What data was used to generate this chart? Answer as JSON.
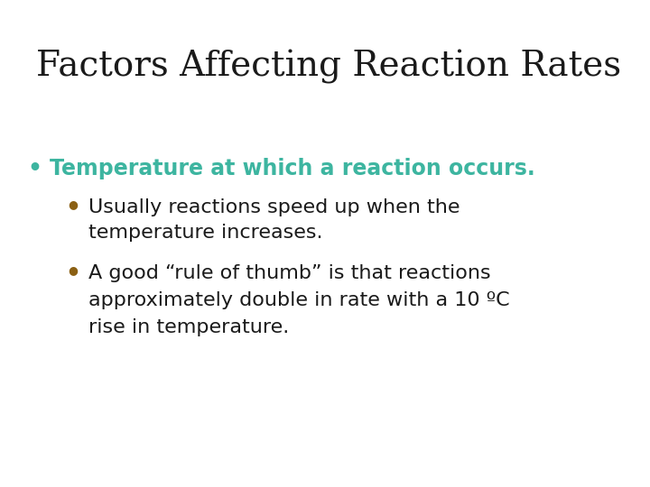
{
  "title": "Factors Affecting Reaction Rates",
  "title_color": "#1a1a1a",
  "title_fontsize": 28,
  "title_font": "serif",
  "background_color": "#ffffff",
  "bullet1_text": "Temperature at which a reaction occurs.",
  "bullet1_color": "#3db5a0",
  "bullet1_fontsize": 17,
  "bullet_dot_color": "#3db5a0",
  "sub_bullet_dot_color": "#8B6014",
  "sub_bullet1_line1": "Usually reactions speed up when the",
  "sub_bullet1_line2": "temperature increases.",
  "sub_bullet2_line1": "A good “rule of thumb” is that reactions",
  "sub_bullet2_line2": "approximately double in rate with a 10 ºC",
  "sub_bullet2_line3": "rise in temperature.",
  "sub_fontsize": 16,
  "sub_font": "sans-serif",
  "sub_color": "#1a1a1a"
}
